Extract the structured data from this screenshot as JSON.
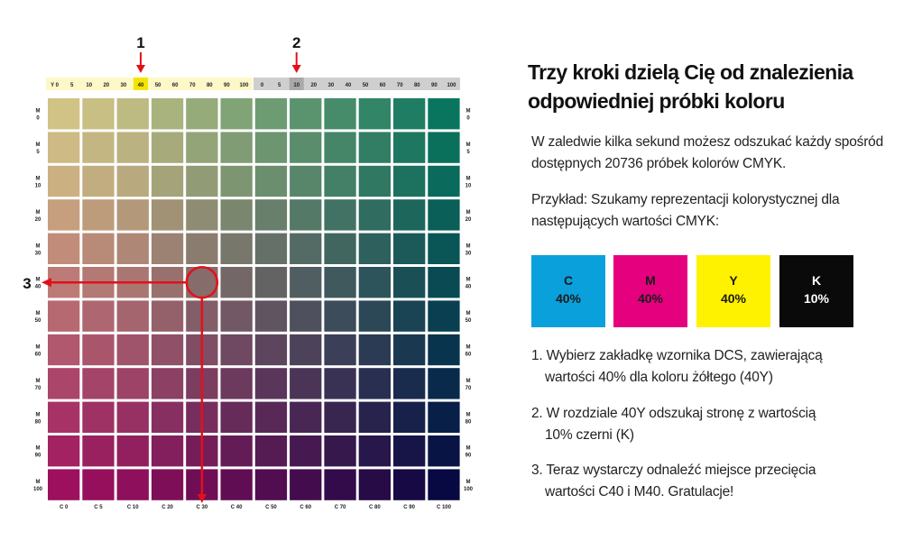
{
  "chart": {
    "y_header": [
      "Y 0",
      "5",
      "10",
      "20",
      "30",
      "40",
      "50",
      "60",
      "70",
      "80",
      "90",
      "100"
    ],
    "k_header": [
      "0",
      "5",
      "10",
      "20",
      "30",
      "40",
      "50",
      "60",
      "70",
      "80",
      "90",
      "100"
    ],
    "rows_m": [
      "0",
      "5",
      "10",
      "20",
      "30",
      "40",
      "50",
      "60",
      "70",
      "80",
      "90",
      "100"
    ],
    "row_prefix": "M",
    "cols_c": [
      "C 0",
      "C 5",
      "C 10",
      "C 20",
      "C 30",
      "C 40",
      "C 50",
      "C 60",
      "C 70",
      "C 80",
      "C 90",
      "C 100"
    ],
    "highlight_y": "40",
    "highlight_k": "10",
    "marker_1": "1",
    "marker_2": "2",
    "marker_3": "3",
    "colors": {
      "yellow_highlight": "#f5e400",
      "k_highlight": "#a9a9a9",
      "arrow": "#e3101a",
      "y_band": "#fdf8c8",
      "k_band": "#cfcfcf"
    }
  },
  "heading": "Trzy kroki dzielą Cię od znalezienia odpowiedniej próbki koloru",
  "intro": "W zaledwie kilka sekund możesz odszukać każdy spośród dostępnych 20736 próbek kolorów CMYK.",
  "example": "Przykład: Szukamy reprezentacji kolorystycznej dla następujących wartości CMYK:",
  "swatches": [
    {
      "letter": "C",
      "value": "40%",
      "bg": "#0aa0dc",
      "fg": "#1a1a1a"
    },
    {
      "letter": "M",
      "value": "40%",
      "bg": "#e5007e",
      "fg": "#1a1a1a"
    },
    {
      "letter": "Y",
      "value": "40%",
      "bg": "#fff200",
      "fg": "#1a1a1a"
    },
    {
      "letter": "K",
      "value": "10%",
      "bg": "#0a0a0a",
      "fg": "#ffffff"
    }
  ],
  "steps": [
    {
      "line1": "1. Wybierz zakładkę wzornika DCS, zawierającą",
      "line2": "wartości 40% dla koloru żółtego (40Y)"
    },
    {
      "line1": "2. W rozdziale 40Y  odszukaj stronę z wartością",
      "line2": "10%  czerni (K)"
    },
    {
      "line1": "3. Teraz wystarczy odnaleźć miejsce przecięcia",
      "line2": "wartości C40 i M40. Gratulacje!"
    }
  ]
}
